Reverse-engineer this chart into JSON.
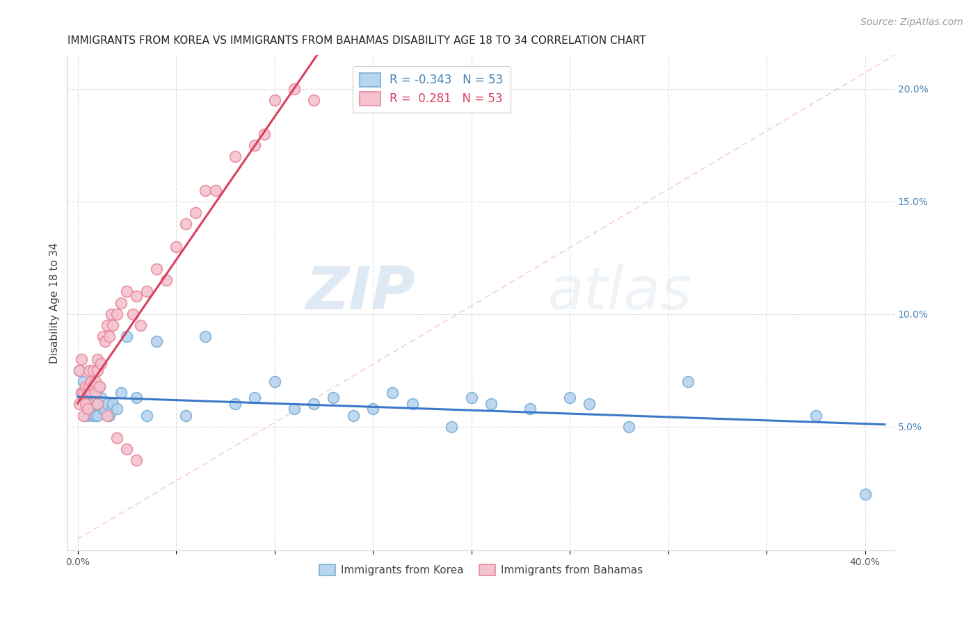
{
  "title": "IMMIGRANTS FROM KOREA VS IMMIGRANTS FROM BAHAMAS DISABILITY AGE 18 TO 34 CORRELATION CHART",
  "source": "Source: ZipAtlas.com",
  "ylabel": "Disability Age 18 to 34",
  "x_tick_labels_show": [
    "0.0%",
    "40.0%"
  ],
  "x_ticks": [
    0.0,
    0.05,
    0.1,
    0.15,
    0.2,
    0.25,
    0.3,
    0.35,
    0.4
  ],
  "x_ticks_labeled": [
    0.0,
    0.4
  ],
  "y_tick_labels_right": [
    "5.0%",
    "10.0%",
    "15.0%",
    "20.0%"
  ],
  "y_ticks_right": [
    0.05,
    0.1,
    0.15,
    0.2
  ],
  "xlim": [
    -0.005,
    0.415
  ],
  "ylim": [
    -0.005,
    0.215
  ],
  "korea_color": "#b8d4ef",
  "bahamas_color": "#f5c2d0",
  "korea_edge_color": "#7aafd4",
  "bahamas_edge_color": "#e8889a",
  "trend_korea_color": "#3c78c8",
  "trend_bahamas_color": "#d84060",
  "diag_color": "#f0b8c0",
  "legend_r_korea": "-0.343",
  "legend_n_korea": "53",
  "legend_r_bahamas": "0.281",
  "legend_n_bahamas": "53",
  "watermark_zip": "ZIP",
  "watermark_atlas": "atlas",
  "korea_x": [
    0.001,
    0.002,
    0.003,
    0.003,
    0.004,
    0.005,
    0.005,
    0.006,
    0.006,
    0.007,
    0.007,
    0.008,
    0.008,
    0.009,
    0.009,
    0.01,
    0.01,
    0.011,
    0.012,
    0.013,
    0.014,
    0.015,
    0.016,
    0.017,
    0.018,
    0.02,
    0.022,
    0.025,
    0.03,
    0.035,
    0.04,
    0.055,
    0.065,
    0.08,
    0.09,
    0.1,
    0.11,
    0.12,
    0.13,
    0.14,
    0.15,
    0.16,
    0.17,
    0.19,
    0.2,
    0.21,
    0.23,
    0.25,
    0.26,
    0.28,
    0.31,
    0.375,
    0.4
  ],
  "korea_y": [
    0.075,
    0.065,
    0.07,
    0.063,
    0.06,
    0.058,
    0.055,
    0.06,
    0.058,
    0.057,
    0.056,
    0.058,
    0.055,
    0.057,
    0.055,
    0.06,
    0.055,
    0.068,
    0.063,
    0.058,
    0.057,
    0.06,
    0.055,
    0.057,
    0.06,
    0.058,
    0.065,
    0.09,
    0.063,
    0.055,
    0.088,
    0.055,
    0.09,
    0.06,
    0.063,
    0.07,
    0.058,
    0.06,
    0.063,
    0.055,
    0.058,
    0.065,
    0.06,
    0.05,
    0.063,
    0.06,
    0.058,
    0.063,
    0.06,
    0.05,
    0.07,
    0.055,
    0.02
  ],
  "bahamas_x": [
    0.001,
    0.001,
    0.002,
    0.002,
    0.003,
    0.003,
    0.004,
    0.004,
    0.005,
    0.005,
    0.006,
    0.006,
    0.007,
    0.007,
    0.008,
    0.008,
    0.009,
    0.009,
    0.01,
    0.01,
    0.011,
    0.012,
    0.013,
    0.014,
    0.015,
    0.016,
    0.017,
    0.018,
    0.02,
    0.022,
    0.025,
    0.028,
    0.03,
    0.032,
    0.035,
    0.04,
    0.045,
    0.05,
    0.055,
    0.06,
    0.065,
    0.07,
    0.08,
    0.09,
    0.095,
    0.1,
    0.11,
    0.12,
    0.01,
    0.015,
    0.02,
    0.025,
    0.03
  ],
  "bahamas_y": [
    0.075,
    0.06,
    0.08,
    0.065,
    0.065,
    0.055,
    0.068,
    0.06,
    0.065,
    0.058,
    0.075,
    0.068,
    0.07,
    0.065,
    0.075,
    0.068,
    0.065,
    0.07,
    0.08,
    0.075,
    0.068,
    0.078,
    0.09,
    0.088,
    0.095,
    0.09,
    0.1,
    0.095,
    0.1,
    0.105,
    0.11,
    0.1,
    0.108,
    0.095,
    0.11,
    0.12,
    0.115,
    0.13,
    0.14,
    0.145,
    0.155,
    0.155,
    0.17,
    0.175,
    0.18,
    0.195,
    0.2,
    0.195,
    0.06,
    0.055,
    0.045,
    0.04,
    0.035
  ],
  "title_fontsize": 11,
  "axis_label_fontsize": 11,
  "tick_fontsize": 10,
  "legend_fontsize": 12,
  "source_fontsize": 10
}
